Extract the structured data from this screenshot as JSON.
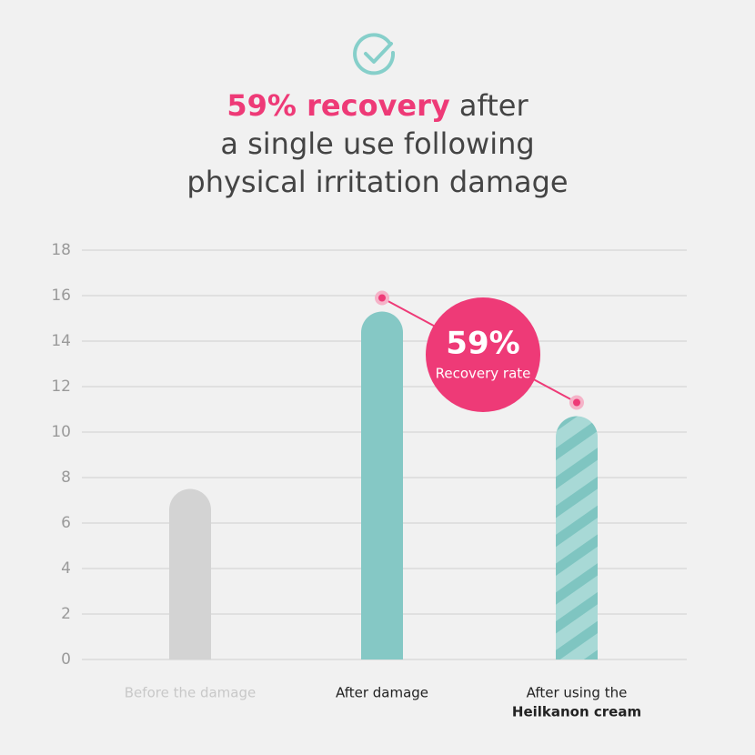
{
  "chart_data": {
    "type": "bar",
    "title_highlight": "59% recovery",
    "title_rest": " after",
    "title_line2": "a single use following",
    "title_line3": "physical irritation damage",
    "badge_value": "59%",
    "badge_label": "Recovery rate",
    "categories": [
      "Before the damage",
      "After damage",
      "After using the"
    ],
    "category_second_line": "Heilkanon cream",
    "values": [
      7.5,
      15.3,
      10.7
    ],
    "colors": [
      "#d3d3d3",
      "#85c8c5",
      "#85c8c5"
    ],
    "striped": [
      false,
      false,
      true
    ],
    "label_colors": [
      "#c8c8c8",
      "#222222",
      "#222222"
    ],
    "ylim": [
      0,
      18
    ],
    "yticks": [
      0,
      2,
      4,
      6,
      8,
      10,
      12,
      14,
      16,
      18
    ],
    "grid": true
  }
}
